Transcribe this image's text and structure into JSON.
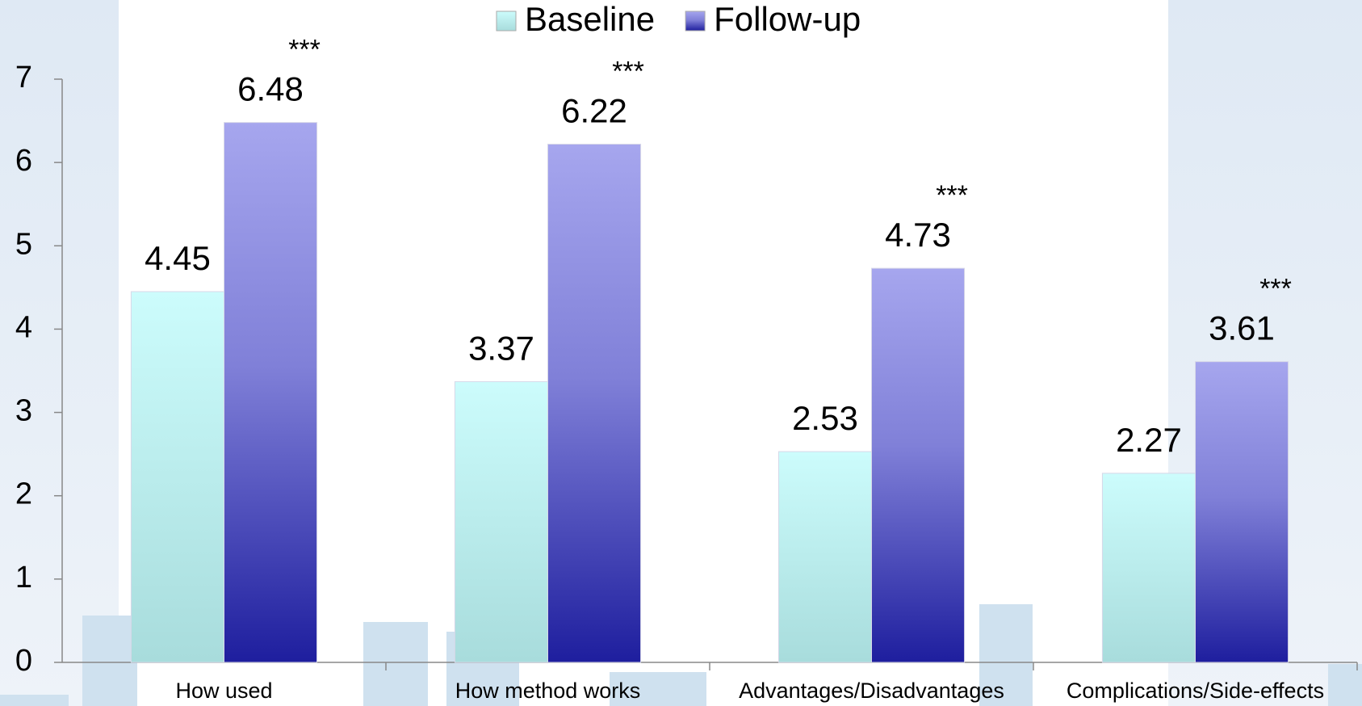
{
  "chart_data": {
    "type": "bar",
    "categories": [
      "How used",
      "How method works",
      "Advantages/Disadvantages",
      "Complications/Side-effects"
    ],
    "series": [
      {
        "name": "Baseline",
        "color": "#b8eeee",
        "values": [
          4.45,
          3.37,
          2.53,
          2.27
        ]
      },
      {
        "name": "Follow-up",
        "color": "#6f6fd0",
        "values": [
          6.48,
          6.22,
          4.73,
          3.61
        ]
      }
    ],
    "annotations": [
      "***",
      "***",
      "***",
      "***"
    ],
    "ylim": [
      0,
      7
    ],
    "yticks": [
      0,
      1,
      2,
      3,
      4,
      5,
      6,
      7
    ],
    "legend": "top"
  }
}
